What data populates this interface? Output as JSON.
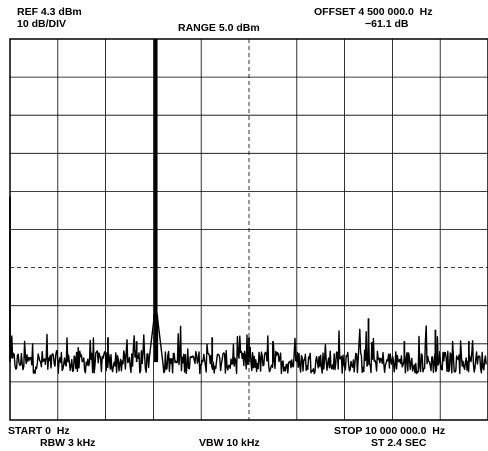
{
  "header": {
    "ref": "REF 4.3 dBm",
    "scale": "10 dB/DIV",
    "range": "RANGE 5.0 dBm",
    "offset": "OFFSET 4 500 000.0  Hz",
    "marker_value": "−61.1 dB"
  },
  "footer": {
    "start": "START 0  Hz",
    "rbw": "RBW 3 kHz",
    "vbw": "VBW 10 kHz",
    "stop": "STOP 10 000 000.0  Hz",
    "sweep": "ST 2.4 SEC"
  },
  "chart_data": {
    "type": "line",
    "title": "",
    "x_start_hz": 0,
    "x_stop_hz": 10000000,
    "y_top_dbm": 4.3,
    "db_per_div": 10,
    "divisions_x": 10,
    "divisions_y": 10,
    "grid": true,
    "reference_line_dbm": -55.7,
    "center_line_hz": 5000000,
    "noise_floor_dbm": -80.5,
    "noise_spread_db": 3,
    "carrier": {
      "x_hz": 3050000,
      "y_dbm": 4.3
    },
    "spurs": [
      {
        "x_hz": 0,
        "y_dbm": -37
      },
      {
        "x_hz": 3080000,
        "y_dbm": -68
      },
      {
        "x_hz": 7500000,
        "y_dbm": -69
      },
      {
        "x_hz": 8900000,
        "y_dbm": -72
      },
      {
        "x_hz": 2050000,
        "y_dbm": -74
      },
      {
        "x_hz": 2650000,
        "y_dbm": -75
      },
      {
        "x_hz": 4230000,
        "y_dbm": -74
      },
      {
        "x_hz": 5000000,
        "y_dbm": -74
      },
      {
        "x_hz": 5500000,
        "y_dbm": -75
      },
      {
        "x_hz": 8250000,
        "y_dbm": -75
      },
      {
        "x_hz": 9600000,
        "y_dbm": -75
      }
    ],
    "line_color": "#000000",
    "grid_color": "#000000"
  }
}
